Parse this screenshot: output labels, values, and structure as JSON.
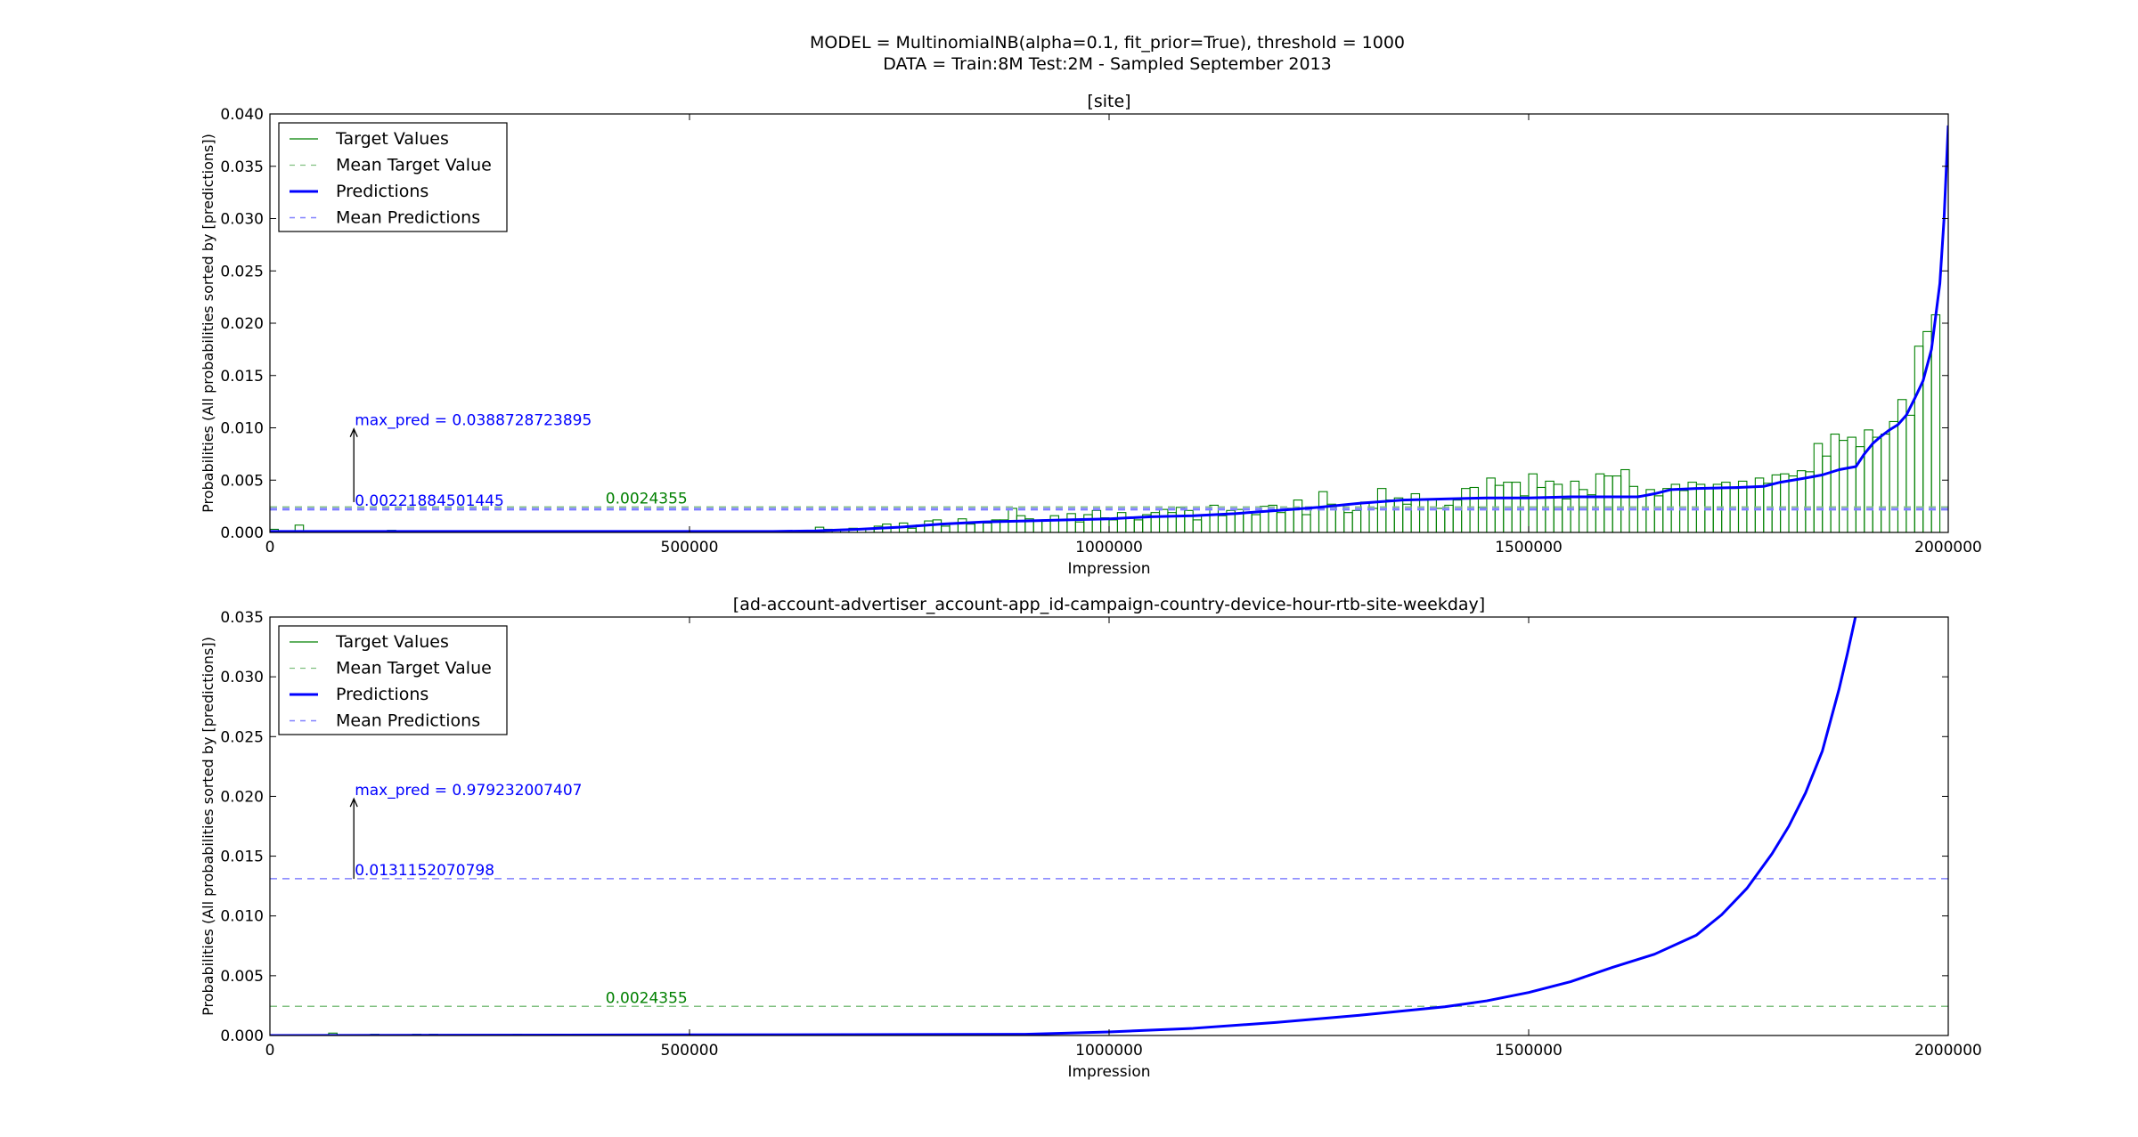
{
  "figure": {
    "suptitle_line1": "MODEL = MultinomialNB(alpha=0.1, fit_prior=True), threshold = 1000",
    "suptitle_line2": "DATA = Train:8M Test:2M - Sampled September 2013"
  },
  "colors": {
    "target": "#008000",
    "target_mean": "#80c080",
    "prediction": "#0000ff",
    "prediction_mean": "#8080ff",
    "annotation_pred": "#0000ff",
    "annotation_target": "#008000"
  },
  "chart_data": [
    {
      "type": "bar",
      "title": "[site]",
      "xlabel": "Impression",
      "ylabel": "Probabilities (All probabilities sorted by [predictions])",
      "xlim": [
        0,
        2000000
      ],
      "ylim": [
        0,
        0.04
      ],
      "xticks": [
        "0",
        "500000",
        "1000000",
        "1500000",
        "2000000"
      ],
      "yticks": [
        "0.000",
        "0.005",
        "0.010",
        "0.015",
        "0.020",
        "0.025",
        "0.030",
        "0.035",
        "0.040"
      ],
      "legend_position": "top-left",
      "legend": [
        "Target Values",
        "Mean Target Value",
        "Predictions",
        "Mean Predictions"
      ],
      "bar_width": 10000,
      "target_values": [
        0.0003,
        0.0,
        0.0,
        0.0007,
        0.0,
        0.0,
        0.0,
        0.0,
        0.0,
        0.0,
        0.0,
        0.0,
        0.0,
        0.0,
        0.0002,
        0.0,
        0.0,
        0.0,
        0.0,
        0.0,
        0.0,
        0.0,
        0.0,
        0.0,
        0.0,
        0.0,
        0.0,
        0.0,
        0.0,
        0.0,
        0.0,
        0.0,
        0.0,
        0.0,
        0.0,
        0.0,
        0.0,
        0.0,
        0.0,
        0.0,
        0.0,
        0.0,
        0.0,
        0.0,
        0.0,
        0.0,
        0.0,
        0.0,
        0.0,
        0.0,
        0.0,
        0.0,
        0.0,
        0.0,
        0.0,
        0.0,
        0.0,
        0.0,
        0.0,
        0.0,
        0.0,
        0.0,
        0.0,
        0.0,
        0.0002,
        0.0005,
        0.0003,
        0.0,
        0.0003,
        0.0004,
        0.0,
        0.0003,
        0.0006,
        0.0008,
        0.0,
        0.0009,
        0.0004,
        0.0007,
        0.0011,
        0.0012,
        0.0006,
        0.0009,
        0.0013,
        0.0008,
        0.001,
        0.0009,
        0.0012,
        0.0012,
        0.0023,
        0.0016,
        0.0013,
        0.0011,
        0.0012,
        0.0016,
        0.0012,
        0.0018,
        0.001,
        0.0017,
        0.0021,
        0.0014,
        0.0012,
        0.0019,
        0.0014,
        0.0012,
        0.0017,
        0.0019,
        0.0022,
        0.0019,
        0.0024,
        0.0021,
        0.0012,
        0.0017,
        0.0026,
        0.0016,
        0.0021,
        0.0022,
        0.0019,
        0.0017,
        0.0025,
        0.0026,
        0.0019,
        0.0023,
        0.0031,
        0.0017,
        0.0024,
        0.0039,
        0.0027,
        0.0026,
        0.0019,
        0.0021,
        0.0029,
        0.0023,
        0.0042,
        0.0031,
        0.0033,
        0.0027,
        0.0037,
        0.0031,
        0.0032,
        0.0023,
        0.0026,
        0.0031,
        0.0042,
        0.0043,
        0.0024,
        0.0052,
        0.0045,
        0.0048,
        0.0048,
        0.0035,
        0.0056,
        0.0043,
        0.0049,
        0.0046,
        0.0032,
        0.0049,
        0.0041,
        0.0036,
        0.0056,
        0.0054,
        0.0054,
        0.006,
        0.0044,
        0.0035,
        0.0041,
        0.0035,
        0.0042,
        0.0046,
        0.004,
        0.0048,
        0.0046,
        0.0042,
        0.0046,
        0.0048,
        0.0042,
        0.0049,
        0.0043,
        0.0052,
        0.0047,
        0.0055,
        0.0056,
        0.0054,
        0.0059,
        0.0058,
        0.0085,
        0.0073,
        0.0094,
        0.0088,
        0.0091,
        0.0082,
        0.0098,
        0.0091,
        0.0094,
        0.0106,
        0.0127,
        0.0112,
        0.0178,
        0.0192,
        0.0208
      ],
      "prediction_curve": {
        "x": [
          0,
          600000,
          650000,
          700000,
          750000,
          800000,
          850000,
          900000,
          950000,
          1000000,
          1050000,
          1100000,
          1150000,
          1200000,
          1250000,
          1300000,
          1350000,
          1400000,
          1450000,
          1500000,
          1550000,
          1600000,
          1630000,
          1650000,
          1670000,
          1700000,
          1750000,
          1780000,
          1800000,
          1830000,
          1850000,
          1870000,
          1890000,
          1900000,
          1910000,
          1920000,
          1930000,
          1940000,
          1950000,
          1960000,
          1970000,
          1980000,
          1990000,
          1995000,
          2000000
        ],
        "y": [
          0.0001,
          0.0001,
          0.00015,
          0.0003,
          0.0005,
          0.0008,
          0.001,
          0.0011,
          0.0012,
          0.0013,
          0.0015,
          0.0016,
          0.0018,
          0.0021,
          0.0024,
          0.0028,
          0.0031,
          0.0032,
          0.0033,
          0.0033,
          0.0034,
          0.0034,
          0.0034,
          0.0037,
          0.0041,
          0.0042,
          0.0043,
          0.0044,
          0.0048,
          0.0052,
          0.0055,
          0.006,
          0.0063,
          0.0075,
          0.0085,
          0.0092,
          0.0098,
          0.0103,
          0.0112,
          0.0128,
          0.0145,
          0.0175,
          0.0238,
          0.03,
          0.0389
        ]
      },
      "mean_target": 0.0024355,
      "mean_prediction": 0.00221884501445,
      "annotations": {
        "max_pred_label": "max_pred = 0.0388728723895",
        "max_pred_arrow": {
          "x": 100000,
          "from": 0.0029,
          "to": 0.0099
        },
        "mean_pred_label": "0.00221884501445",
        "mean_target_label": "0.0024355",
        "mean_target_label_x": 400000
      }
    },
    {
      "type": "bar",
      "title": "[ad-account-advertiser_account-app_id-campaign-country-device-hour-rtb-site-weekday]",
      "xlabel": "Impression",
      "ylabel": "Probabilities (All probabilities sorted by [predictions])",
      "xlim": [
        0,
        2000000
      ],
      "ylim": [
        0,
        0.035
      ],
      "xticks": [
        "0",
        "500000",
        "1000000",
        "1500000",
        "2000000"
      ],
      "yticks": [
        "0.000",
        "0.005",
        "0.010",
        "0.015",
        "0.020",
        "0.025",
        "0.030",
        "0.035"
      ],
      "legend_position": "top-left",
      "legend": [
        "Target Values",
        "Mean Target Value",
        "Predictions",
        "Mean Predictions"
      ],
      "bar_width": 10000,
      "target_values": [
        0.0,
        0.0,
        0.0,
        0.0,
        0.0,
        0.0,
        0.0,
        0.0002,
        0.0,
        0.0,
        0.0,
        0.0,
        0.0001,
        0.0,
        0.0,
        0.0,
        0.0,
        0.0001,
        0.0,
        0.0001,
        0.0,
        0.0,
        0.0,
        0.0,
        0.0,
        0.0,
        0.0,
        0.0,
        0.0,
        0.0001,
        0.0,
        0.0,
        0.0,
        0.0,
        0.0,
        0.0,
        0.0,
        0.0,
        0.0,
        0.0,
        0.0,
        0.0,
        0.0,
        0.0,
        0.0,
        0.0,
        0.0,
        0.0,
        0.0,
        0.0,
        0.0,
        0.0,
        0.0,
        0.0,
        0.0,
        0.0,
        0.0,
        0.0,
        0.0,
        0.0,
        0.0,
        0.0,
        0.0,
        0.0,
        0.0,
        0.0,
        0.0,
        0.0,
        0.0,
        0.0,
        0.0,
        0.0,
        0.0,
        0.0,
        0.0,
        0.0,
        0.0,
        0.0,
        0.0,
        0.0,
        0.0,
        0.0,
        0.0,
        0.0,
        0.0,
        0.0,
        0.0,
        0.0,
        0.0,
        0.0,
        0.0,
        0.0,
        0.0,
        0.0,
        0.0,
        0.0,
        0.0,
        0.0,
        0.0,
        0.0,
        0.0,
        0.0,
        0.0,
        0.0,
        0.0,
        0.0,
        0.0,
        0.0,
        0.0,
        0.0,
        0.0,
        0.0,
        0.0,
        0.0,
        0.0,
        0.0,
        0.0,
        0.0,
        0.0,
        0.0,
        0.0,
        0.0,
        0.0,
        0.0,
        0.0,
        0.0,
        0.0,
        0.0,
        0.0,
        0.0,
        0.0,
        0.0,
        0.0,
        0.0,
        0.0,
        0.0,
        0.0,
        0.0,
        0.0,
        0.0,
        0.0,
        0.0,
        0.0,
        0.0,
        0.0,
        0.0,
        0.0,
        0.0,
        0.0,
        0.0,
        0.0,
        0.0,
        0.0,
        0.0,
        0.0,
        0.0,
        0.0,
        0.0,
        0.0,
        0.0,
        0.0,
        0.0,
        0.0,
        0.0,
        0.0,
        0.0,
        0.0,
        0.0,
        0.0,
        0.0,
        0.0,
        0.0,
        0.0,
        0.0,
        0.0,
        0.0,
        0.0,
        0.0,
        0.0,
        0.0,
        0.0,
        0.0,
        0.0,
        0.0,
        0.0,
        0.0,
        0.0,
        0.0,
        0.0,
        0.0,
        0.0,
        0.0,
        0.0,
        0.0,
        0.0,
        0.0,
        0.0,
        0.0
      ],
      "prediction_curve": {
        "x": [
          0,
          900000,
          1000000,
          1100000,
          1200000,
          1300000,
          1400000,
          1450000,
          1500000,
          1550000,
          1600000,
          1650000,
          1700000,
          1730000,
          1760000,
          1790000,
          1810000,
          1830000,
          1850000,
          1870000,
          1880000,
          1890000
        ],
        "y": [
          0.0,
          0.0001,
          0.0003,
          0.0006,
          0.0011,
          0.0017,
          0.0024,
          0.0029,
          0.0036,
          0.0045,
          0.0057,
          0.0068,
          0.0084,
          0.0101,
          0.0123,
          0.0152,
          0.0175,
          0.0203,
          0.0238,
          0.029,
          0.032,
          0.0352
        ]
      },
      "mean_target": 0.0024355,
      "mean_prediction": 0.0131152070798,
      "annotations": {
        "max_pred_label": "max_pred = 0.979232007407",
        "max_pred_arrow": {
          "x": 100000,
          "from": 0.0131,
          "to": 0.0198
        },
        "mean_pred_label": "0.0131152070798",
        "mean_target_label": "0.0024355",
        "mean_target_label_x": 400000
      }
    }
  ]
}
